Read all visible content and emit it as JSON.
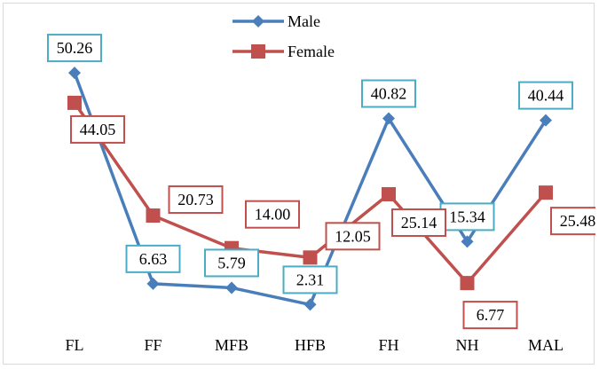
{
  "chart_data": {
    "type": "line",
    "categories": [
      "FL",
      "FF",
      "MFB",
      "HFB",
      "FH",
      "NH",
      "MAL"
    ],
    "series": [
      {
        "name": "Male",
        "values": [
          50.26,
          6.63,
          5.79,
          2.31,
          40.82,
          15.34,
          40.44
        ],
        "labels": [
          "50.26",
          "6.63",
          "5.79",
          "2.31",
          "40.82",
          "15.34",
          "40.44"
        ],
        "color": "#4a7ebb",
        "label_border": "#4bacc6",
        "marker": "diamond"
      },
      {
        "name": "Female",
        "values": [
          44.05,
          20.73,
          14.0,
          12.05,
          25.14,
          6.77,
          25.48
        ],
        "labels": [
          "44.05",
          "20.73",
          "14.00",
          "12.05",
          "25.14",
          "6.77",
          "25.48"
        ],
        "color": "#c0504d",
        "label_border": "#c0504d",
        "marker": "square"
      }
    ],
    "ylim": [
      0,
      60
    ],
    "grid": false,
    "legend": "top-center"
  }
}
